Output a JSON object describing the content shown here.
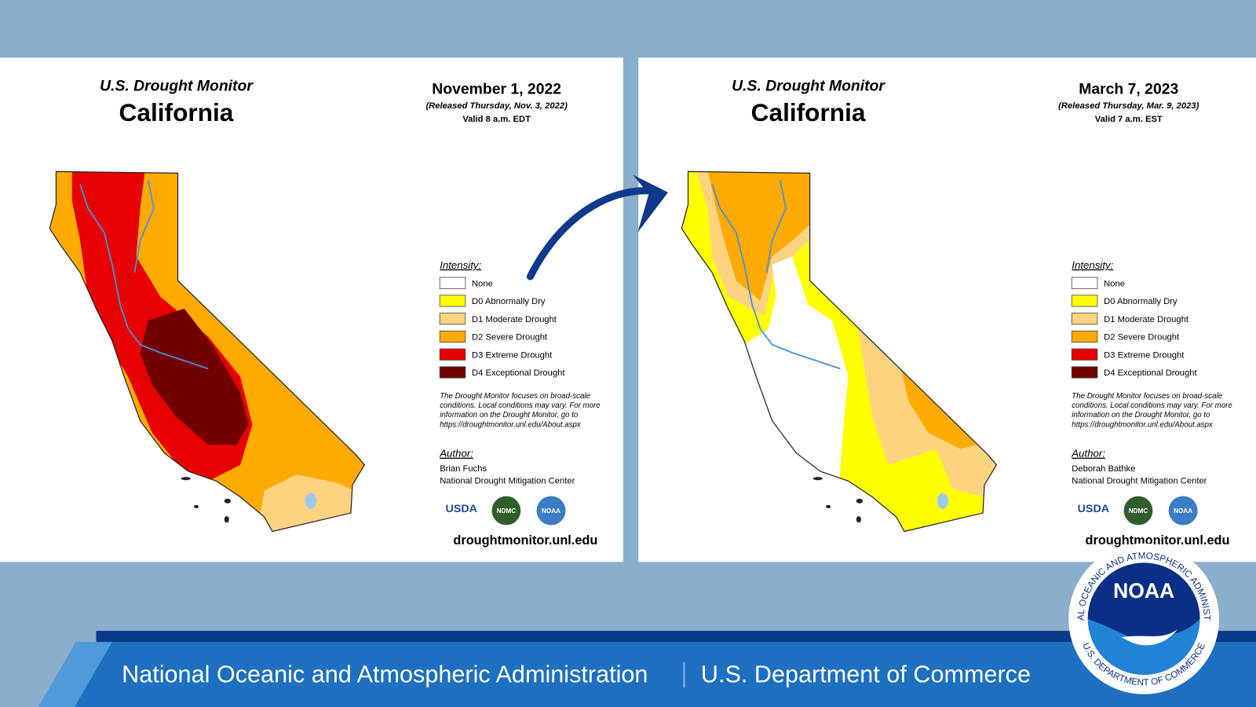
{
  "panels": [
    {
      "heading": "U.S. Drought Monitor",
      "state": "California",
      "date": "November 1, 2022",
      "released": "(Released Thursday, Nov. 3, 2022)",
      "valid": "Valid 8 a.m. EDT",
      "legend_title": "Intensity:",
      "legend": [
        {
          "label": "None",
          "color": "#ffffff"
        },
        {
          "label": "D0 Abnormally Dry",
          "color": "#ffff00"
        },
        {
          "label": "D1 Moderate Drought",
          "color": "#fcd37f"
        },
        {
          "label": "D2 Severe Drought",
          "color": "#ffaa00"
        },
        {
          "label": "D3 Extreme Drought",
          "color": "#e60000"
        },
        {
          "label": "D4 Exceptional Drought",
          "color": "#730000"
        }
      ],
      "note": [
        "The Drought Monitor focuses on broad-scale",
        "conditions. Local conditions may vary. For more",
        "information on the Drought Monitor, go to",
        "https://droughtmonitor.unl.edu/About.aspx"
      ],
      "author_label": "Author:",
      "author": "Brian Fuchs",
      "organization": "National Drought Mitigation Center",
      "logos": [
        "USDA",
        "NDMC",
        "NOAA"
      ],
      "url": "droughtmonitor.unl.edu"
    },
    {
      "heading": "U.S. Drought Monitor",
      "state": "California",
      "date": "March 7, 2023",
      "released": "(Released Thursday, Mar. 9, 2023)",
      "valid": "Valid 7 a.m. EST",
      "legend_title": "Intensity:",
      "legend": [
        {
          "label": "None",
          "color": "#ffffff"
        },
        {
          "label": "D0 Abnormally Dry",
          "color": "#ffff00"
        },
        {
          "label": "D1 Moderate Drought",
          "color": "#fcd37f"
        },
        {
          "label": "D2 Severe Drought",
          "color": "#ffaa00"
        },
        {
          "label": "D3 Extreme Drought",
          "color": "#e60000"
        },
        {
          "label": "D4 Exceptional Drought",
          "color": "#730000"
        }
      ],
      "note": [
        "The Drought Monitor focuses on broad-scale",
        "conditions. Local conditions may vary. For more",
        "information on the Drought Monitor, go to",
        "https://droughtmonitor.unl.edu/About.aspx"
      ],
      "author_label": "Author:",
      "author": "Deborah Bathke",
      "organization": "National Drought Mitigation Center",
      "logos": [
        "USDA",
        "NDMC",
        "NOAA"
      ],
      "url": "droughtmonitor.unl.edu"
    }
  ],
  "footer": {
    "left": "National Oceanic and Atmospheric Administration",
    "right": "U.S. Department of Commerce"
  },
  "seal": {
    "name": "NOAA",
    "ring_top": "NATIONAL OCEANIC AND ATMOSPHERIC ADMINISTRATION",
    "ring_bottom": "U.S. DEPARTMENT OF COMMERCE"
  }
}
